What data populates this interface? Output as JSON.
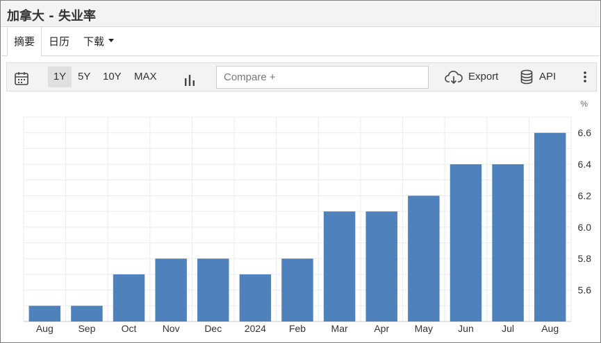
{
  "header": {
    "title": "加拿大 - 失业率"
  },
  "tabs": [
    {
      "label": "摘要"
    },
    {
      "label": "日历"
    },
    {
      "label": "下载"
    }
  ],
  "toolbar": {
    "ranges": [
      "1Y",
      "5Y",
      "10Y",
      "MAX"
    ],
    "compare_placeholder": "Compare +",
    "export_label": "Export",
    "api_label": "API"
  },
  "icons": {
    "calendar": "calendar-icon",
    "chart_type": "bar-chart-icon",
    "export": "cloud-download-icon",
    "api": "database-icon",
    "menu": "more-vertical-icon"
  },
  "colors": {
    "bar": "#4f81bd",
    "grid": "#ebebeb",
    "axis": "#c8c8c8"
  },
  "chart_data": {
    "type": "bar",
    "unit": "%",
    "categories": [
      "Aug",
      "Sep",
      "Oct",
      "Nov",
      "Dec",
      "2024",
      "Feb",
      "Mar",
      "Apr",
      "May",
      "Jun",
      "Jul",
      "Aug"
    ],
    "values": [
      5.5,
      5.5,
      5.7,
      5.8,
      5.8,
      5.7,
      5.8,
      6.1,
      6.1,
      6.2,
      6.4,
      6.4,
      6.6
    ],
    "yticks": [
      "5.6",
      "5.8",
      "6.0",
      "6.2",
      "6.4",
      "6.6"
    ],
    "ylim": [
      5.4,
      6.7
    ],
    "grid": true,
    "yaxis_side": "right"
  }
}
